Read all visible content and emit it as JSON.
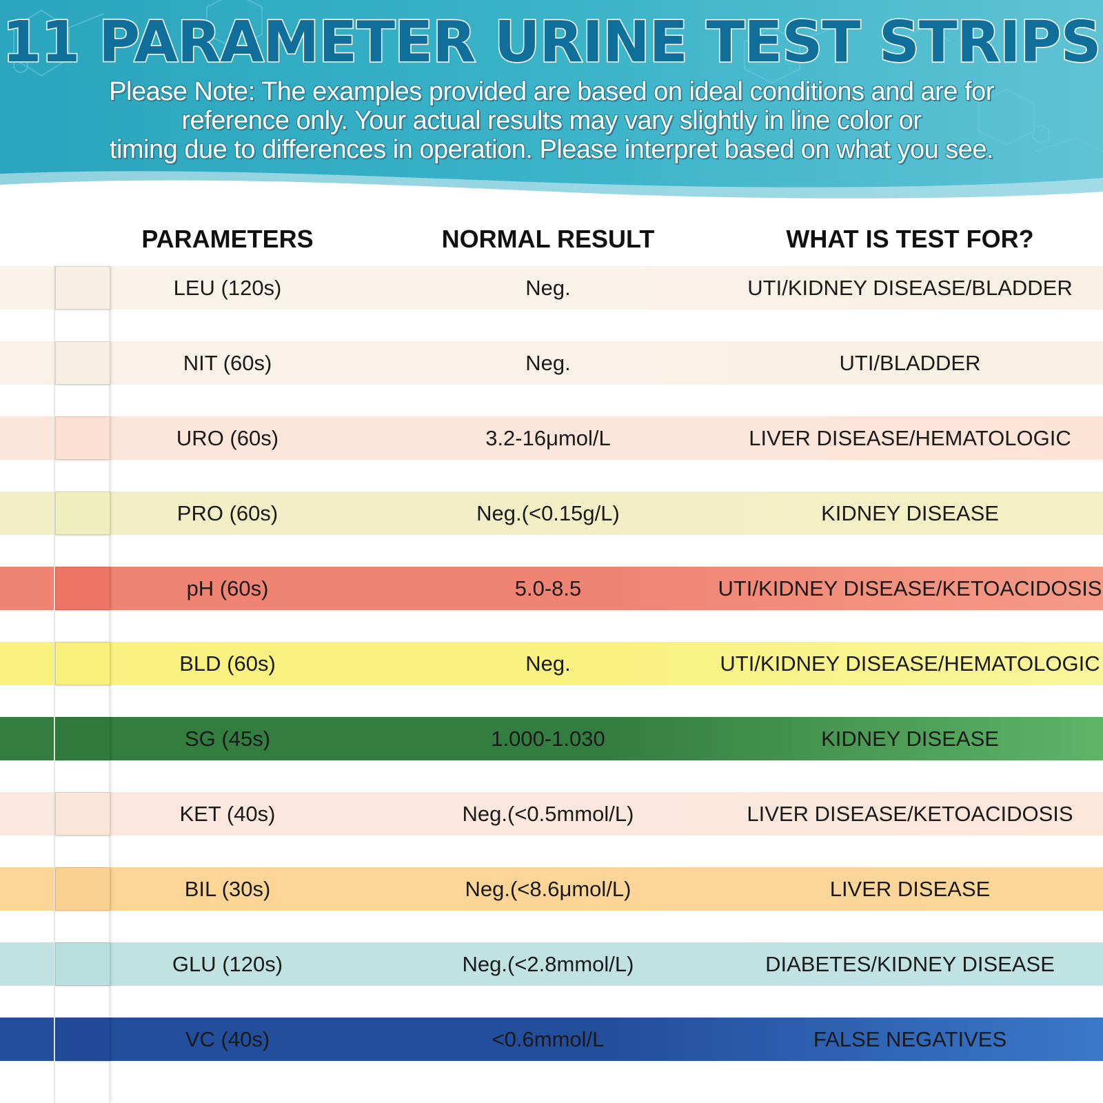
{
  "header": {
    "title": "11 PARAMETER URINE TEST STRIPS",
    "note_lines": [
      "Please Note: The examples provided are based on ideal conditions and are for",
      "reference only. Your actual results may vary slightly in line color or",
      "timing due to differences in operation. Please interpret based on what you see."
    ]
  },
  "columns": {
    "parameters": "PARAMETERS",
    "normal_result": "NORMAL RESULT",
    "what_is_test_for": "WHAT IS TEST FOR?"
  },
  "rows": [
    {
      "parameter": "LEU (120s)",
      "normal": "Neg.",
      "purpose": "UTI/KIDNEY DISEASE/BLADDER",
      "pad_color": "#f7efe4",
      "band_left": "#faf3ea",
      "band_right": "#f9efe3"
    },
    {
      "parameter": "NIT (60s)",
      "normal": "Neg.",
      "purpose": "UTI/BLADDER",
      "pad_color": "#f7ede2",
      "band_left": "#faf2e8",
      "band_right": "#f9efe2"
    },
    {
      "parameter": "URO (60s)",
      "normal": "3.2-16μmol/L",
      "purpose": "LIVER DISEASE/HEMATOLOGIC",
      "pad_color": "#fbe0d3",
      "band_left": "#fce6dc",
      "band_right": "#fde3d6"
    },
    {
      "parameter": "PRO (60s)",
      "normal": "Neg.(<0.15g/L)",
      "purpose": "KIDNEY DISEASE",
      "pad_color": "#efeebd",
      "band_left": "#f2efc6",
      "band_right": "#f4f0c5"
    },
    {
      "parameter": "pH (60s)",
      "normal": "5.0-8.5",
      "purpose": "UTI/KIDNEY DISEASE/KETOACIDOSIS",
      "pad_color": "#ee7565",
      "band_left": "#f08473",
      "band_right": "#f59a87"
    },
    {
      "parameter": "BLD (60s)",
      "normal": "Neg.",
      "purpose": "UTI/KIDNEY DISEASE/HEMATOLOGIC",
      "pad_color": "#f7f07a",
      "band_left": "#f9f280",
      "band_right": "#f9f59c"
    },
    {
      "parameter": "SG (45s)",
      "normal": "1.000-1.030",
      "purpose": "KIDNEY DISEASE",
      "pad_color": "#2f7a3c",
      "band_left": "#347d40",
      "band_right": "#5fb468"
    },
    {
      "parameter": "KET (40s)",
      "normal": "Neg.(<0.5mmol/L)",
      "purpose": "LIVER DISEASE/KETOACIDOSIS",
      "pad_color": "#fbe4d8",
      "band_left": "#fce8de",
      "band_right": "#fde6da"
    },
    {
      "parameter": "BIL (30s)",
      "normal": "Neg.(<8.6μmol/L)",
      "purpose": "LIVER DISEASE",
      "pad_color": "#fbd18f",
      "band_left": "#fcd597",
      "band_right": "#fdd69a"
    },
    {
      "parameter": "GLU (120s)",
      "normal": "Neg.(<2.8mmol/L)",
      "purpose": "DIABETES/KIDNEY DISEASE",
      "pad_color": "#b9e0df",
      "band_left": "#c0e3e2",
      "band_right": "#bfe2e2"
    },
    {
      "parameter": "VC (40s)",
      "normal": "<0.6mmol/L",
      "purpose": "FALSE NEGATIVES",
      "pad_color": "#214b99",
      "band_left": "#234e9c",
      "band_right": "#3b78c8"
    }
  ],
  "colors": {
    "banner": "#3ab3c8",
    "title_fill": "#0f6e9a",
    "title_stroke": "#ffffff"
  }
}
